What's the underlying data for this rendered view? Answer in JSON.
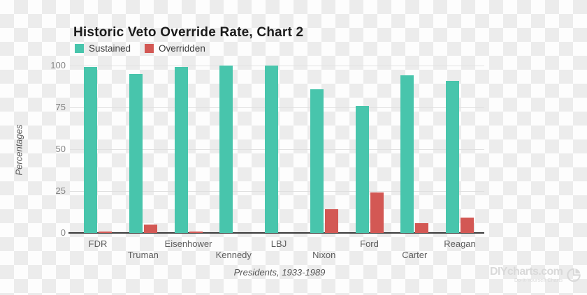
{
  "title": "Historic Veto Override Rate, Chart 2",
  "legend": [
    {
      "label": "Sustained",
      "color": "#48C5AC"
    },
    {
      "label": "Overridden",
      "color": "#D35854"
    }
  ],
  "chart_data": {
    "type": "bar",
    "title": "Historic Veto Override Rate, Chart 2",
    "categories": [
      "FDR",
      "Truman",
      "Eisenhower",
      "Kennedy",
      "LBJ",
      "Nixon",
      "Ford",
      "Carter",
      "Reagan"
    ],
    "series": [
      {
        "name": "Sustained",
        "color": "#48C5AC",
        "values": [
          99,
          95,
          99,
          100,
          100,
          86,
          76,
          94,
          91
        ]
      },
      {
        "name": "Overridden",
        "color": "#D35854",
        "values": [
          1,
          5,
          1,
          0,
          0,
          14,
          24,
          6,
          9
        ]
      }
    ],
    "xlabel": "Presidents, 1933-1989",
    "ylabel": "Percentages",
    "yticks": [
      0,
      25,
      50,
      75,
      100
    ],
    "ylim": [
      0,
      100
    ],
    "grid": true,
    "legend_position": "top-left"
  },
  "watermark": {
    "text": "DIYcharts.com",
    "subtext": "Do-It-Yourself Charts",
    "icon": "pie-chart-icon"
  },
  "colors": {
    "title-text": "#1C1C1C",
    "legend-text": "#3C3C3C",
    "axis": "#3B3B3B",
    "gridline": "#E0E0E0",
    "y-tick-text": "#848484",
    "x-tick-text": "#5D5D5D",
    "axis-title-text": "#555555",
    "watermark": "#D9D9D9",
    "checker-light": "#FDFDFD",
    "checker-dark": "#ECECEC"
  }
}
